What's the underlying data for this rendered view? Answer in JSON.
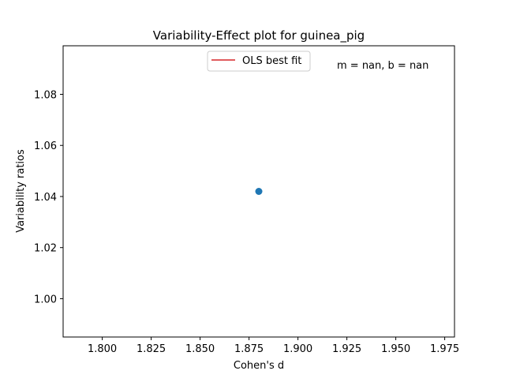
{
  "chart_data": {
    "type": "scatter",
    "title": "Variability-Effect plot for guinea_pig",
    "xlabel": "Cohen's d",
    "ylabel": "Variability ratios",
    "xlim": [
      1.78,
      1.98
    ],
    "ylim": [
      0.985,
      1.099
    ],
    "x_ticks": [
      1.8,
      1.825,
      1.85,
      1.875,
      1.9,
      1.925,
      1.95,
      1.975
    ],
    "x_tick_labels": [
      "1.800",
      "1.825",
      "1.850",
      "1.875",
      "1.900",
      "1.925",
      "1.950",
      "1.975"
    ],
    "y_ticks": [
      1.0,
      1.02,
      1.04,
      1.06,
      1.08
    ],
    "y_tick_labels": [
      "1.00",
      "1.02",
      "1.04",
      "1.06",
      "1.08"
    ],
    "series": [
      {
        "values": [
          {
            "x": 1.88,
            "y": 1.042
          }
        ],
        "color": "#1f77b4"
      }
    ],
    "fit_line": {
      "name": "OLS best fit",
      "color": "#d62728"
    },
    "annotation": "m = nan, b = nan",
    "legend_placement": "top-center",
    "grid": false
  }
}
